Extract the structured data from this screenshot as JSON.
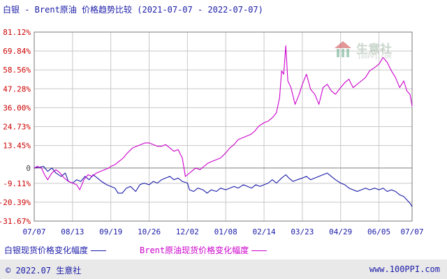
{
  "header": {
    "title": "白银 - Brent原油 价格趋势比较",
    "date_range": "(2021-07-07 - 2022-07-07)"
  },
  "watermark": {
    "name": "生意社",
    "url": "100PPI.COM"
  },
  "legend": {
    "silver_label": "白银现货价格变化幅度",
    "brent_label": "Brent原油现货价格变化幅度"
  },
  "footer": {
    "copyright": "© 2022.07 生意社",
    "site": "www.100PPI.com"
  },
  "colors": {
    "silver": "#1a1aa8",
    "brent": "#cc00cc",
    "ytick": "#cc0000",
    "grid": "#c8c8c8"
  },
  "chart_data": {
    "type": "line",
    "title": "白银 - Brent原油 价格趋势比较",
    "xlabel": "",
    "ylabel": "",
    "x_start": "2021-07-07",
    "x_end": "2022-07-07",
    "x_ticks": [
      {
        "date": "2021-07-07",
        "label": "07/07"
      },
      {
        "date": "2021-08-13",
        "label": "08/13"
      },
      {
        "date": "2021-09-19",
        "label": "09/19"
      },
      {
        "date": "2021-10-26",
        "label": "10/26"
      },
      {
        "date": "2021-12-02",
        "label": "12/02"
      },
      {
        "date": "2022-01-08",
        "label": "01/08"
      },
      {
        "date": "2022-02-14",
        "label": "02/14"
      },
      {
        "date": "2022-03-23",
        "label": "03/23"
      },
      {
        "date": "2022-04-29",
        "label": "04/29"
      },
      {
        "date": "2022-06-05",
        "label": "06/05"
      },
      {
        "date": "2022-07-07",
        "label": "07/07"
      }
    ],
    "y_ticks": [
      {
        "value": 81.12,
        "label": "81.12%"
      },
      {
        "value": 69.84,
        "label": "69.84%"
      },
      {
        "value": 58.56,
        "label": "58.56%"
      },
      {
        "value": 47.28,
        "label": "47.28%"
      },
      {
        "value": 36.0,
        "label": "36.00%"
      },
      {
        "value": 24.73,
        "label": "24.73%"
      },
      {
        "value": 13.45,
        "label": "13.45%"
      },
      {
        "value": 0,
        "label": "0"
      },
      {
        "value": -9.11,
        "label": "-9.11%"
      },
      {
        "value": -20.39,
        "label": "-20.39%"
      },
      {
        "value": -31.67,
        "label": "-31.67%"
      }
    ],
    "ylim": [
      -31.67,
      81.12
    ],
    "grid": true,
    "legend_position": "bottom",
    "series": [
      {
        "name": "白银现货价格变化幅度",
        "color": "#1a1aa8",
        "points": [
          [
            "2021-07-07",
            0
          ],
          [
            "2021-07-12",
            0.5
          ],
          [
            "2021-07-16",
            1
          ],
          [
            "2021-07-20",
            -2
          ],
          [
            "2021-07-24",
            0
          ],
          [
            "2021-07-28",
            -3
          ],
          [
            "2021-08-02",
            -5
          ],
          [
            "2021-08-06",
            -3
          ],
          [
            "2021-08-09",
            -8
          ],
          [
            "2021-08-13",
            -9
          ],
          [
            "2021-08-17",
            -7
          ],
          [
            "2021-08-21",
            -8
          ],
          [
            "2021-08-25",
            -5
          ],
          [
            "2021-08-29",
            -7
          ],
          [
            "2021-09-02",
            -4
          ],
          [
            "2021-09-06",
            -6
          ],
          [
            "2021-09-10",
            -8
          ],
          [
            "2021-09-15",
            -10
          ],
          [
            "2021-09-19",
            -11
          ],
          [
            "2021-09-23",
            -12
          ],
          [
            "2021-09-26",
            -15
          ],
          [
            "2021-09-30",
            -15
          ],
          [
            "2021-10-04",
            -12
          ],
          [
            "2021-10-08",
            -11
          ],
          [
            "2021-10-13",
            -14
          ],
          [
            "2021-10-17",
            -10
          ],
          [
            "2021-10-21",
            -9
          ],
          [
            "2021-10-26",
            -10
          ],
          [
            "2021-10-30",
            -8
          ],
          [
            "2021-11-03",
            -9
          ],
          [
            "2021-11-07",
            -7
          ],
          [
            "2021-11-11",
            -6
          ],
          [
            "2021-11-15",
            -5
          ],
          [
            "2021-11-19",
            -7
          ],
          [
            "2021-11-23",
            -6
          ],
          [
            "2021-11-27",
            -8
          ],
          [
            "2021-12-02",
            -9
          ],
          [
            "2021-12-04",
            -13
          ],
          [
            "2021-12-08",
            -14
          ],
          [
            "2021-12-12",
            -12
          ],
          [
            "2021-12-17",
            -13
          ],
          [
            "2021-12-21",
            -15
          ],
          [
            "2021-12-25",
            -13
          ],
          [
            "2021-12-30",
            -14
          ],
          [
            "2022-01-03",
            -12
          ],
          [
            "2022-01-08",
            -13
          ],
          [
            "2022-01-12",
            -12
          ],
          [
            "2022-01-16",
            -11
          ],
          [
            "2022-01-20",
            -12
          ],
          [
            "2022-01-25",
            -10
          ],
          [
            "2022-01-29",
            -11
          ],
          [
            "2022-02-02",
            -12
          ],
          [
            "2022-02-06",
            -10
          ],
          [
            "2022-02-10",
            -11
          ],
          [
            "2022-02-14",
            -10
          ],
          [
            "2022-02-18",
            -9
          ],
          [
            "2022-02-22",
            -7
          ],
          [
            "2022-02-26",
            -9
          ],
          [
            "2022-03-03",
            -6
          ],
          [
            "2022-03-07",
            -4
          ],
          [
            "2022-03-10",
            -6
          ],
          [
            "2022-03-14",
            -8
          ],
          [
            "2022-03-18",
            -7
          ],
          [
            "2022-03-23",
            -6
          ],
          [
            "2022-03-27",
            -5
          ],
          [
            "2022-03-31",
            -7
          ],
          [
            "2022-04-04",
            -6
          ],
          [
            "2022-04-08",
            -5
          ],
          [
            "2022-04-12",
            -4
          ],
          [
            "2022-04-16",
            -3
          ],
          [
            "2022-04-20",
            -5
          ],
          [
            "2022-04-24",
            -7
          ],
          [
            "2022-04-29",
            -9
          ],
          [
            "2022-05-03",
            -10
          ],
          [
            "2022-05-07",
            -12
          ],
          [
            "2022-05-11",
            -13
          ],
          [
            "2022-05-15",
            -14
          ],
          [
            "2022-05-19",
            -13
          ],
          [
            "2022-05-23",
            -12
          ],
          [
            "2022-05-27",
            -13
          ],
          [
            "2022-06-01",
            -12
          ],
          [
            "2022-06-05",
            -13
          ],
          [
            "2022-06-09",
            -12
          ],
          [
            "2022-06-13",
            -14
          ],
          [
            "2022-06-17",
            -13
          ],
          [
            "2022-06-21",
            -14
          ],
          [
            "2022-06-25",
            -16
          ],
          [
            "2022-06-29",
            -17
          ],
          [
            "2022-07-02",
            -19
          ],
          [
            "2022-07-05",
            -21
          ],
          [
            "2022-07-07",
            -23
          ]
        ]
      },
      {
        "name": "Brent原油现货价格变化幅度",
        "color": "#cc00cc",
        "points": [
          [
            "2021-07-07",
            0
          ],
          [
            "2021-07-10",
            1
          ],
          [
            "2021-07-14",
            0
          ],
          [
            "2021-07-17",
            -4
          ],
          [
            "2021-07-20",
            -7
          ],
          [
            "2021-07-24",
            -3
          ],
          [
            "2021-07-28",
            -1
          ],
          [
            "2021-08-01",
            -3
          ],
          [
            "2021-08-05",
            -6
          ],
          [
            "2021-08-09",
            -8
          ],
          [
            "2021-08-13",
            -9
          ],
          [
            "2021-08-17",
            -10
          ],
          [
            "2021-08-20",
            -13
          ],
          [
            "2021-08-24",
            -7
          ],
          [
            "2021-08-28",
            -4
          ],
          [
            "2021-09-01",
            -5
          ],
          [
            "2021-09-05",
            -3
          ],
          [
            "2021-09-09",
            -2
          ],
          [
            "2021-09-13",
            -1
          ],
          [
            "2021-09-17",
            0
          ],
          [
            "2021-09-19",
            1
          ],
          [
            "2021-09-23",
            2
          ],
          [
            "2021-09-27",
            4
          ],
          [
            "2021-10-01",
            6
          ],
          [
            "2021-10-05",
            9
          ],
          [
            "2021-10-10",
            12
          ],
          [
            "2021-10-14",
            13
          ],
          [
            "2021-10-18",
            14
          ],
          [
            "2021-10-22",
            15
          ],
          [
            "2021-10-26",
            15
          ],
          [
            "2021-10-30",
            14
          ],
          [
            "2021-11-03",
            13
          ],
          [
            "2021-11-07",
            13
          ],
          [
            "2021-11-11",
            14
          ],
          [
            "2021-11-15",
            12
          ],
          [
            "2021-11-19",
            10
          ],
          [
            "2021-11-23",
            11
          ],
          [
            "2021-11-27",
            6
          ],
          [
            "2021-11-30",
            -5
          ],
          [
            "2021-12-02",
            -4
          ],
          [
            "2021-12-06",
            -2
          ],
          [
            "2021-12-10",
            0
          ],
          [
            "2021-12-14",
            -1
          ],
          [
            "2021-12-18",
            1
          ],
          [
            "2021-12-22",
            3
          ],
          [
            "2021-12-26",
            4
          ],
          [
            "2021-12-30",
            5
          ],
          [
            "2022-01-03",
            6
          ],
          [
            "2022-01-08",
            9
          ],
          [
            "2022-01-12",
            12
          ],
          [
            "2022-01-16",
            14
          ],
          [
            "2022-01-20",
            17
          ],
          [
            "2022-01-24",
            18
          ],
          [
            "2022-01-28",
            19
          ],
          [
            "2022-02-01",
            20
          ],
          [
            "2022-02-05",
            22
          ],
          [
            "2022-02-09",
            25
          ],
          [
            "2022-02-14",
            27
          ],
          [
            "2022-02-18",
            28
          ],
          [
            "2022-02-22",
            30
          ],
          [
            "2022-02-26",
            33
          ],
          [
            "2022-03-01",
            42
          ],
          [
            "2022-03-03",
            58
          ],
          [
            "2022-03-05",
            56
          ],
          [
            "2022-03-07",
            73
          ],
          [
            "2022-03-09",
            52
          ],
          [
            "2022-03-12",
            48
          ],
          [
            "2022-03-16",
            38
          ],
          [
            "2022-03-20",
            44
          ],
          [
            "2022-03-23",
            50
          ],
          [
            "2022-03-27",
            56
          ],
          [
            "2022-03-31",
            47
          ],
          [
            "2022-04-04",
            44
          ],
          [
            "2022-04-08",
            38
          ],
          [
            "2022-04-12",
            48
          ],
          [
            "2022-04-16",
            50
          ],
          [
            "2022-04-20",
            46
          ],
          [
            "2022-04-24",
            44
          ],
          [
            "2022-04-29",
            48
          ],
          [
            "2022-05-03",
            51
          ],
          [
            "2022-05-07",
            53
          ],
          [
            "2022-05-11",
            48
          ],
          [
            "2022-05-15",
            50
          ],
          [
            "2022-05-19",
            52
          ],
          [
            "2022-05-23",
            54
          ],
          [
            "2022-05-27",
            58
          ],
          [
            "2022-06-01",
            60
          ],
          [
            "2022-06-05",
            62
          ],
          [
            "2022-06-09",
            66
          ],
          [
            "2022-06-13",
            63
          ],
          [
            "2022-06-17",
            58
          ],
          [
            "2022-06-21",
            54
          ],
          [
            "2022-06-25",
            48
          ],
          [
            "2022-06-29",
            52
          ],
          [
            "2022-07-02",
            46
          ],
          [
            "2022-07-05",
            44
          ],
          [
            "2022-07-07",
            37
          ]
        ]
      }
    ]
  }
}
